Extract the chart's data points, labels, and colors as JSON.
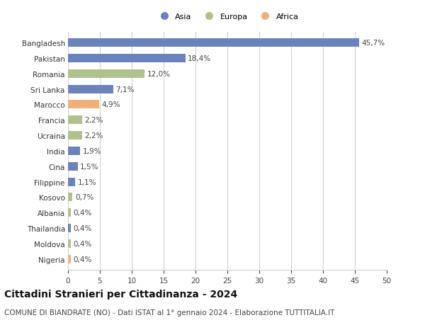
{
  "categories": [
    "Bangladesh",
    "Pakistan",
    "Romania",
    "Sri Lanka",
    "Marocco",
    "Francia",
    "Ucraina",
    "India",
    "Cina",
    "Filippine",
    "Kosovo",
    "Albania",
    "Thailandia",
    "Moldova",
    "Nigeria"
  ],
  "values": [
    45.7,
    18.4,
    12.0,
    7.1,
    4.9,
    2.2,
    2.2,
    1.9,
    1.5,
    1.1,
    0.7,
    0.4,
    0.4,
    0.4,
    0.4
  ],
  "labels": [
    "45,7%",
    "18,4%",
    "12,0%",
    "7,1%",
    "4,9%",
    "2,2%",
    "2,2%",
    "1,9%",
    "1,5%",
    "1,1%",
    "0,7%",
    "0,4%",
    "0,4%",
    "0,4%",
    "0,4%"
  ],
  "continents": [
    "Asia",
    "Asia",
    "Europa",
    "Asia",
    "Africa",
    "Europa",
    "Europa",
    "Asia",
    "Asia",
    "Asia",
    "Europa",
    "Europa",
    "Asia",
    "Europa",
    "Africa"
  ],
  "colors": {
    "Asia": "#6b83bc",
    "Europa": "#afc28d",
    "Africa": "#f0b07a"
  },
  "legend_labels": [
    "Asia",
    "Europa",
    "Africa"
  ],
  "xlim": [
    0,
    50
  ],
  "xticks": [
    0,
    5,
    10,
    15,
    20,
    25,
    30,
    35,
    40,
    45,
    50
  ],
  "title": "Cittadini Stranieri per Cittadinanza - 2024",
  "subtitle": "COMUNE DI BIANDRATE (NO) - Dati ISTAT al 1° gennaio 2024 - Elaborazione TUTTITALIA.IT",
  "background_color": "#ffffff",
  "grid_color": "#d0d0d0",
  "bar_height": 0.55,
  "label_fontsize": 7.5,
  "tick_fontsize": 7.5,
  "title_fontsize": 10,
  "subtitle_fontsize": 7.5
}
